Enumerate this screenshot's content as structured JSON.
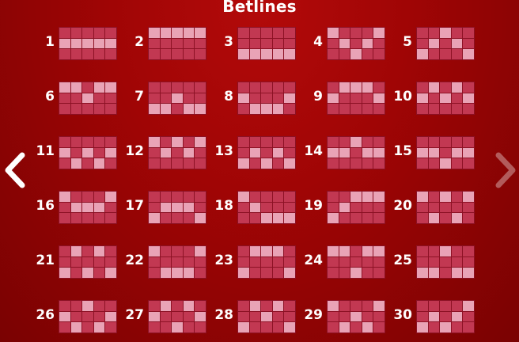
{
  "title": "Betlines",
  "nav": {
    "prev_icon": "chevron-left-icon",
    "next_icon": "chevron-right-icon"
  },
  "colors": {
    "background": "#a00505",
    "cell": "#c23852",
    "cell_active": "#e9a3b6",
    "grid_line": "#8c1124"
  },
  "paylines": [
    {
      "number": "1",
      "rows": [
        1,
        1,
        1,
        1,
        1
      ]
    },
    {
      "number": "2",
      "rows": [
        0,
        0,
        0,
        0,
        0
      ]
    },
    {
      "number": "3",
      "rows": [
        2,
        2,
        2,
        2,
        2
      ]
    },
    {
      "number": "4",
      "rows": [
        0,
        1,
        2,
        1,
        0
      ]
    },
    {
      "number": "5",
      "rows": [
        2,
        1,
        0,
        1,
        2
      ]
    },
    {
      "number": "6",
      "rows": [
        0,
        0,
        1,
        0,
        0
      ]
    },
    {
      "number": "7",
      "rows": [
        2,
        2,
        1,
        2,
        2
      ]
    },
    {
      "number": "8",
      "rows": [
        1,
        2,
        2,
        2,
        1
      ]
    },
    {
      "number": "9",
      "rows": [
        1,
        0,
        0,
        0,
        1
      ]
    },
    {
      "number": "10",
      "rows": [
        1,
        0,
        1,
        0,
        1
      ]
    },
    {
      "number": "11",
      "rows": [
        1,
        2,
        1,
        2,
        1
      ]
    },
    {
      "number": "12",
      "rows": [
        0,
        1,
        0,
        1,
        0
      ]
    },
    {
      "number": "13",
      "rows": [
        2,
        1,
        2,
        1,
        2
      ]
    },
    {
      "number": "14",
      "rows": [
        1,
        1,
        0,
        1,
        1
      ]
    },
    {
      "number": "15",
      "rows": [
        1,
        1,
        2,
        1,
        1
      ]
    },
    {
      "number": "16",
      "rows": [
        0,
        1,
        1,
        1,
        0
      ]
    },
    {
      "number": "17",
      "rows": [
        2,
        1,
        1,
        1,
        2
      ]
    },
    {
      "number": "18",
      "rows": [
        0,
        1,
        2,
        2,
        2
      ]
    },
    {
      "number": "19",
      "rows": [
        2,
        1,
        0,
        0,
        0
      ]
    },
    {
      "number": "20",
      "rows": [
        0,
        2,
        0,
        2,
        0
      ]
    },
    {
      "number": "21",
      "rows": [
        2,
        0,
        2,
        0,
        2
      ]
    },
    {
      "number": "22",
      "rows": [
        0,
        2,
        2,
        2,
        0
      ]
    },
    {
      "number": "23",
      "rows": [
        2,
        0,
        0,
        0,
        2
      ]
    },
    {
      "number": "24",
      "rows": [
        0,
        0,
        2,
        0,
        0
      ]
    },
    {
      "number": "25",
      "rows": [
        2,
        2,
        0,
        2,
        2
      ]
    },
    {
      "number": "26",
      "rows": [
        1,
        2,
        0,
        2,
        1
      ]
    },
    {
      "number": "27",
      "rows": [
        1,
        0,
        2,
        0,
        1
      ]
    },
    {
      "number": "28",
      "rows": [
        2,
        0,
        1,
        0,
        2
      ]
    },
    {
      "number": "29",
      "rows": [
        0,
        2,
        1,
        2,
        0
      ]
    },
    {
      "number": "30",
      "rows": [
        2,
        1,
        2,
        1,
        0
      ]
    }
  ]
}
